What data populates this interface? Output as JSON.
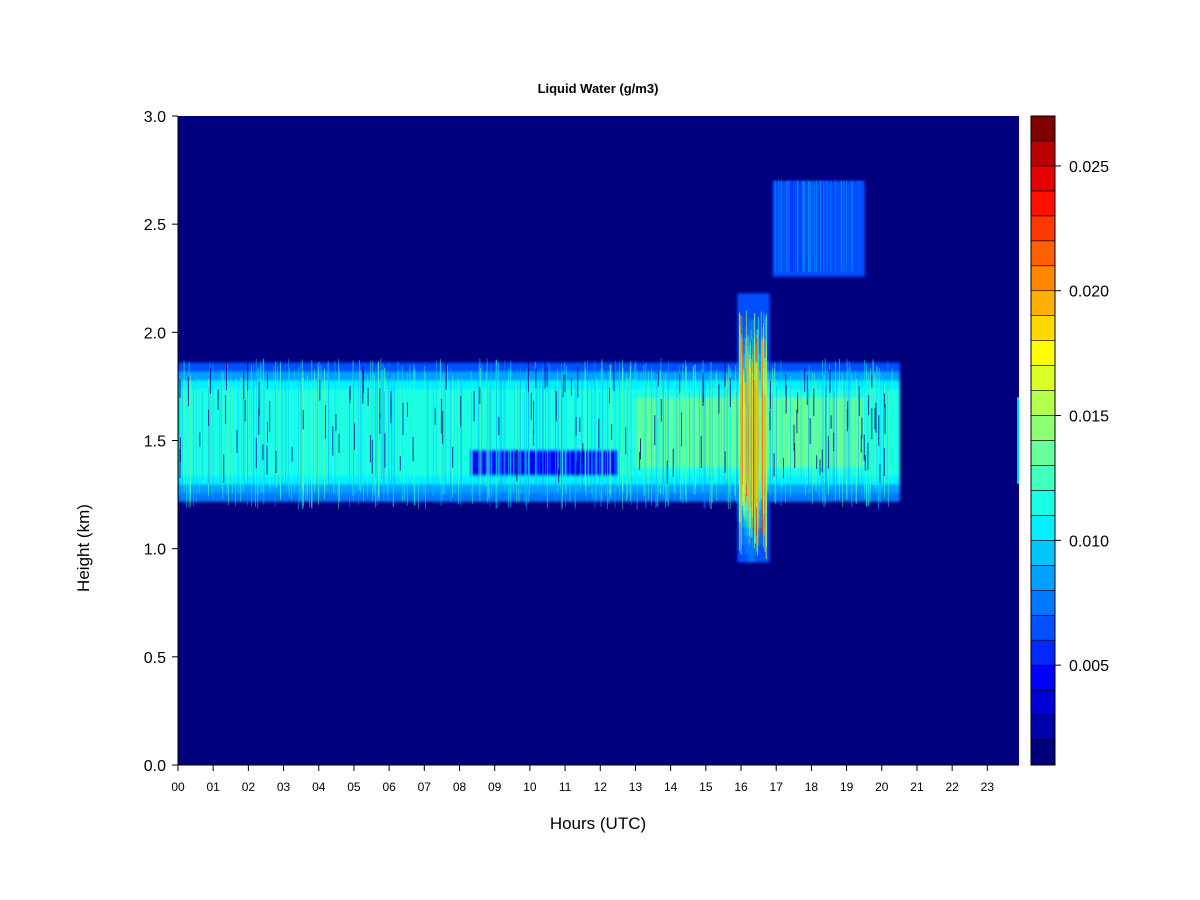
{
  "chart_data": {
    "type": "heatmap",
    "title": "Liquid Water (g/m3)",
    "xlabel": "Hours (UTC)",
    "ylabel": "Height (km)",
    "xlim": [
      0,
      23.9
    ],
    "ylim": [
      0,
      3.0
    ],
    "x_ticks": [
      0,
      1,
      2,
      3,
      4,
      5,
      6,
      7,
      8,
      9,
      10,
      11,
      12,
      13,
      14,
      15,
      16,
      17,
      18,
      19,
      20,
      21,
      22,
      23
    ],
    "x_tick_labels": [
      "00",
      "01",
      "02",
      "03",
      "04",
      "05",
      "06",
      "07",
      "08",
      "09",
      "10",
      "11",
      "12",
      "13",
      "14",
      "15",
      "16",
      "17",
      "18",
      "19",
      "20",
      "21",
      "22",
      "23"
    ],
    "y_ticks": [
      0.0,
      0.5,
      1.0,
      1.5,
      2.0,
      2.5,
      3.0
    ],
    "y_tick_labels": [
      "0.0",
      "0.5",
      "1.0",
      "1.5",
      "2.0",
      "2.5",
      "3.0"
    ],
    "colorbar": {
      "range": [
        0.001,
        0.027
      ],
      "levels": 26,
      "ticks": [
        0.005,
        0.01,
        0.015,
        0.02,
        0.025
      ],
      "tick_labels": [
        "0.005",
        "0.010",
        "0.015",
        "0.020",
        "0.025"
      ],
      "colors": [
        "#00007F",
        "#0000AA",
        "#0000D4",
        "#0000FF",
        "#0028FF",
        "#0050FF",
        "#0078FF",
        "#00A0FF",
        "#00C8FF",
        "#00F0FF",
        "#1AFFE5",
        "#40FFBF",
        "#66FF99",
        "#8CFF73",
        "#B3FF4D",
        "#D9FF26",
        "#FFFF00",
        "#FFD800",
        "#FFB000",
        "#FF8800",
        "#FF6000",
        "#FF3800",
        "#FF1000",
        "#E60000",
        "#B80000",
        "#800000"
      ]
    },
    "background_color": "#00007F",
    "features": [
      {
        "name": "main cloud layer",
        "x_range": [
          0,
          20.5
        ],
        "y_range": [
          1.22,
          1.85
        ],
        "peak_value": 0.011,
        "note": "thinner gap near 1.4 km between 08 and 12.5 UTC"
      },
      {
        "name": "convective core",
        "x_range": [
          16.0,
          16.6
        ],
        "y_range": [
          0.95,
          2.2
        ],
        "peak_value": 0.024
      },
      {
        "name": "upper patches",
        "x_range": [
          16.9,
          19.5
        ],
        "y_range": [
          2.25,
          2.7
        ],
        "peak_value": 0.008
      }
    ]
  }
}
